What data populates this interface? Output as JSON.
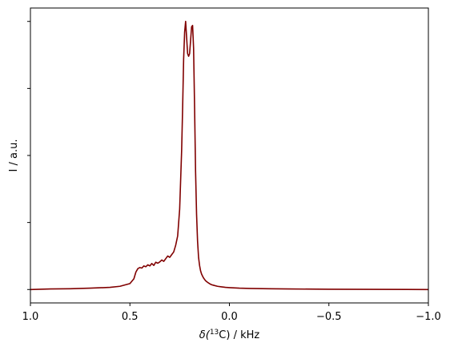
{
  "chart_data": {
    "type": "line",
    "xlabel_parts": {
      "prefix": "δ(",
      "sup": "13",
      "suffix": "C) / kHz"
    },
    "ylabel": "I / a.u.",
    "xlim": [
      1.0,
      -1.0
    ],
    "ylim": [
      -0.05,
      1.05
    ],
    "x_ticks": [
      1.0,
      0.5,
      0.0,
      -0.5,
      -1.0
    ],
    "x_tick_labels": [
      "1.0",
      "0.5",
      "0.0",
      "−0.5",
      "−1.0"
    ],
    "y_ticks": [
      0.0,
      0.25,
      0.5,
      0.75,
      1.0
    ],
    "y_tick_labels": [
      "",
      "",
      "",
      "",
      ""
    ],
    "grid": false,
    "series": [
      {
        "color": "#800000",
        "x": [
          1.0,
          0.9,
          0.8,
          0.7,
          0.6,
          0.55,
          0.5,
          0.48,
          0.47,
          0.46,
          0.45,
          0.44,
          0.43,
          0.42,
          0.41,
          0.4,
          0.39,
          0.38,
          0.37,
          0.36,
          0.35,
          0.34,
          0.33,
          0.32,
          0.31,
          0.3,
          0.29,
          0.28,
          0.27,
          0.26,
          0.25,
          0.24,
          0.235,
          0.23,
          0.225,
          0.22,
          0.215,
          0.21,
          0.205,
          0.2,
          0.195,
          0.19,
          0.185,
          0.18,
          0.175,
          0.17,
          0.165,
          0.16,
          0.155,
          0.15,
          0.145,
          0.14,
          0.135,
          0.13,
          0.125,
          0.12,
          0.11,
          0.1,
          0.09,
          0.08,
          0.06,
          0.04,
          0.02,
          0.0,
          -0.05,
          -0.1,
          -0.2,
          -0.3,
          -0.5,
          -0.7,
          -1.0
        ],
        "y": [
          0.0,
          0.002,
          0.003,
          0.005,
          0.008,
          0.012,
          0.022,
          0.04,
          0.065,
          0.078,
          0.082,
          0.08,
          0.088,
          0.085,
          0.092,
          0.088,
          0.097,
          0.09,
          0.102,
          0.098,
          0.103,
          0.11,
          0.105,
          0.115,
          0.125,
          0.12,
          0.13,
          0.14,
          0.165,
          0.2,
          0.3,
          0.52,
          0.68,
          0.86,
          0.96,
          1.0,
          0.94,
          0.88,
          0.87,
          0.88,
          0.93,
          0.98,
          0.985,
          0.9,
          0.68,
          0.44,
          0.28,
          0.18,
          0.12,
          0.09,
          0.07,
          0.058,
          0.05,
          0.043,
          0.038,
          0.033,
          0.027,
          0.022,
          0.018,
          0.016,
          0.012,
          0.01,
          0.008,
          0.007,
          0.005,
          0.004,
          0.003,
          0.002,
          0.001,
          0.0005,
          0.0
        ]
      }
    ]
  }
}
